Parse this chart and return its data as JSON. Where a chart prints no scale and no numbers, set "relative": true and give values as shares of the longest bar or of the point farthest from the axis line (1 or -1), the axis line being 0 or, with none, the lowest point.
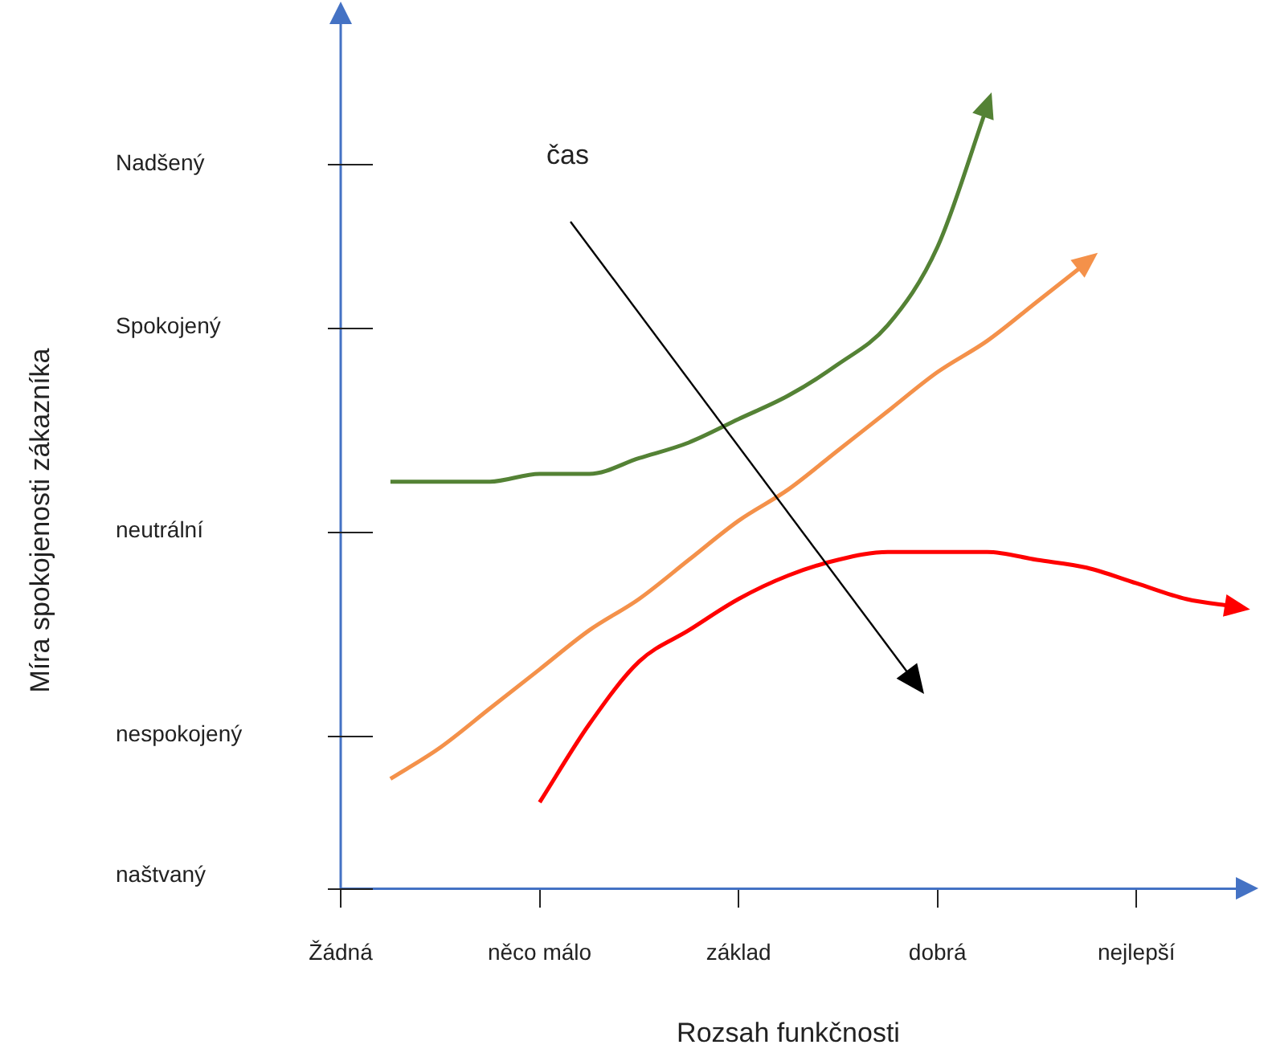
{
  "chart_data": {
    "type": "line",
    "xlabel": "Rozsah funkčnosti",
    "relative": true,
    "categories": [
      "Žádná",
      null,
      null,
      null,
      "něco málo",
      null,
      null,
      null,
      "základ",
      null,
      null,
      null,
      "dobrá",
      null,
      null,
      null,
      "nejlepší",
      null,
      null
    ],
    "series": [
      {
        "color": "#548235",
        "values": [
          null,
          0.52,
          0.52,
          0.52,
          0.53,
          0.53,
          0.55,
          0.57,
          0.6,
          0.63,
          0.67,
          0.72,
          0.82,
          1.0,
          null,
          null,
          null,
          null,
          null
        ]
      },
      {
        "color": "#f4914a",
        "values": [
          null,
          0.14,
          0.18,
          0.23,
          0.28,
          0.33,
          0.37,
          0.42,
          0.47,
          0.51,
          0.56,
          0.61,
          0.66,
          0.7,
          0.75,
          0.8,
          null,
          null,
          null
        ]
      },
      {
        "color": "#ff0000",
        "values": [
          null,
          null,
          null,
          null,
          0.11,
          0.21,
          0.29,
          0.33,
          0.37,
          0.4,
          0.42,
          0.43,
          0.43,
          0.43,
          0.42,
          0.41,
          0.39,
          0.37,
          0.36
        ]
      }
    ],
    "annotations": [
      "čas",
      "naštvaný",
      "nespokojený",
      "neutrální",
      "Spokojený",
      "Nadšený",
      "Míra spokojenosti zákazníka"
    ],
    "grid": false,
    "legend": false,
    "marker": "none",
    "line_style": "solid"
  }
}
